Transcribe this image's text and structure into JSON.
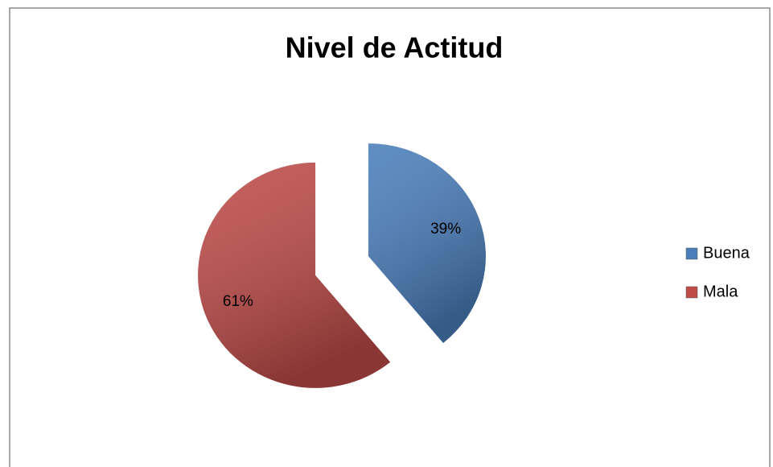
{
  "chart_data": {
    "type": "pie",
    "title": "Nivel de Actitud",
    "categories": [
      "Buena",
      "Mala"
    ],
    "values": [
      39,
      61
    ],
    "value_labels": [
      "39%",
      "61%"
    ],
    "colors": [
      "#4a7ebb",
      "#be4b48"
    ],
    "legend": "right",
    "exploded": true
  }
}
